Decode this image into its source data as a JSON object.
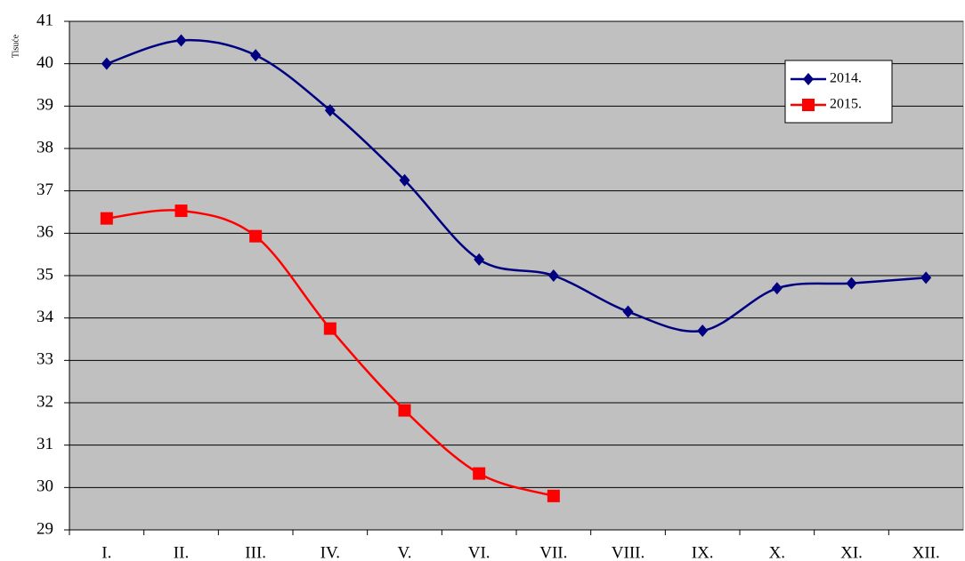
{
  "chart_data": {
    "type": "line",
    "y_label": "Tisuće",
    "categories": [
      "I.",
      "II.",
      "III.",
      "IV.",
      "V.",
      "VI.",
      "VII.",
      "VIII.",
      "IX.",
      "X.",
      "XI.",
      "XII."
    ],
    "series": [
      {
        "name": "2014.",
        "color": "#000080",
        "marker": "diamond",
        "values": [
          40.0,
          40.55,
          40.2,
          38.9,
          37.25,
          35.38,
          35.0,
          34.15,
          33.7,
          34.7,
          34.82,
          34.95
        ]
      },
      {
        "name": "2015.",
        "color": "#ff0000",
        "marker": "square",
        "values": [
          36.35,
          36.53,
          35.93,
          33.75,
          31.82,
          30.33,
          29.8,
          null,
          null,
          null,
          null,
          null
        ]
      }
    ],
    "ylim": [
      29,
      41
    ],
    "yticks": [
      29,
      30,
      31,
      32,
      33,
      34,
      35,
      36,
      37,
      38,
      39,
      40,
      41
    ],
    "grid": true,
    "smooth": true,
    "legend": "upper right",
    "background": "#c0c0c0"
  }
}
